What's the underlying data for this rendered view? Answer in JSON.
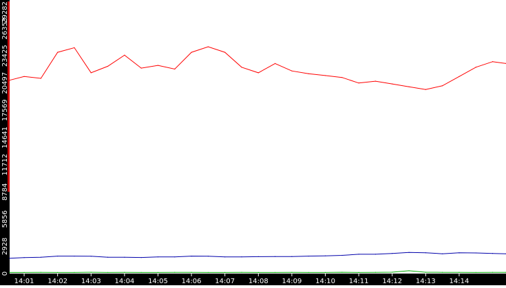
{
  "chart_data": {
    "type": "line",
    "title": "",
    "xlabel": "",
    "ylabel": "",
    "ylim": [
      0,
      29282
    ],
    "xlim": [
      "14:00:34",
      "14:15:24"
    ],
    "grid": false,
    "legend": "none",
    "yticks": [
      {
        "value": 0,
        "label": "0"
      },
      {
        "value": 2928,
        "label": "2928"
      },
      {
        "value": 5856,
        "label": "5856"
      },
      {
        "value": 8784,
        "label": "8784"
      },
      {
        "value": 11712,
        "label": "11712"
      },
      {
        "value": 14641,
        "label": "14641"
      },
      {
        "value": 17569,
        "label": "17569"
      },
      {
        "value": 20497,
        "label": "20497"
      },
      {
        "value": 23425,
        "label": "23425"
      },
      {
        "value": 26353,
        "label": "26353"
      },
      {
        "value": 29282,
        "label": "29282"
      }
    ],
    "xticks": [
      {
        "value": "14:01",
        "label": "14:01"
      },
      {
        "value": "14:02",
        "label": "14:02"
      },
      {
        "value": "14:03",
        "label": "14:03"
      },
      {
        "value": "14:04",
        "label": "14:04"
      },
      {
        "value": "14:05",
        "label": "14:05"
      },
      {
        "value": "14:06",
        "label": "14:06"
      },
      {
        "value": "14:07",
        "label": "14:07"
      },
      {
        "value": "14:08",
        "label": "14:08"
      },
      {
        "value": "14:09",
        "label": "14:09"
      },
      {
        "value": "14:10",
        "label": "14:10"
      },
      {
        "value": "14:11",
        "label": "14:11"
      },
      {
        "value": "14:12",
        "label": "14:12"
      },
      {
        "value": "14:13",
        "label": "14:13"
      },
      {
        "value": "14:14",
        "label": "14:14"
      }
    ],
    "x": [
      "14:00:34",
      "14:01:00",
      "14:01:30",
      "14:02:00",
      "14:02:30",
      "14:03:00",
      "14:03:30",
      "14:04:00",
      "14:04:30",
      "14:05:00",
      "14:05:30",
      "14:06:00",
      "14:06:30",
      "14:07:00",
      "14:07:30",
      "14:08:00",
      "14:08:30",
      "14:09:00",
      "14:09:30",
      "14:10:00",
      "14:10:30",
      "14:11:00",
      "14:11:30",
      "14:12:00",
      "14:12:30",
      "14:13:00",
      "14:13:30",
      "14:14:00",
      "14:14:30",
      "14:15:00",
      "14:15:24"
    ],
    "series": [
      {
        "color": "#ff0000",
        "values": [
          20800,
          21200,
          21000,
          23800,
          24300,
          21600,
          22300,
          23500,
          22100,
          22400,
          22000,
          23800,
          24400,
          23800,
          22200,
          21600,
          22600,
          21800,
          21500,
          21300,
          21100,
          20500,
          20700,
          20400,
          20100,
          19800,
          20200,
          21200,
          22200,
          22800,
          22600
        ]
      },
      {
        "color": "#0000aa",
        "values": [
          1650,
          1720,
          1760,
          1880,
          1880,
          1860,
          1760,
          1750,
          1730,
          1790,
          1790,
          1880,
          1870,
          1790,
          1800,
          1820,
          1830,
          1830,
          1880,
          1910,
          1960,
          2080,
          2080,
          2170,
          2270,
          2240,
          2130,
          2230,
          2220,
          2170,
          2130
        ]
      },
      {
        "color": "#00aa00",
        "values": [
          120,
          120,
          130,
          120,
          120,
          140,
          120,
          130,
          120,
          120,
          130,
          130,
          120,
          120,
          130,
          120,
          120,
          130,
          120,
          120,
          140,
          120,
          130,
          150,
          300,
          140,
          130,
          130,
          120,
          130,
          130
        ]
      }
    ]
  }
}
